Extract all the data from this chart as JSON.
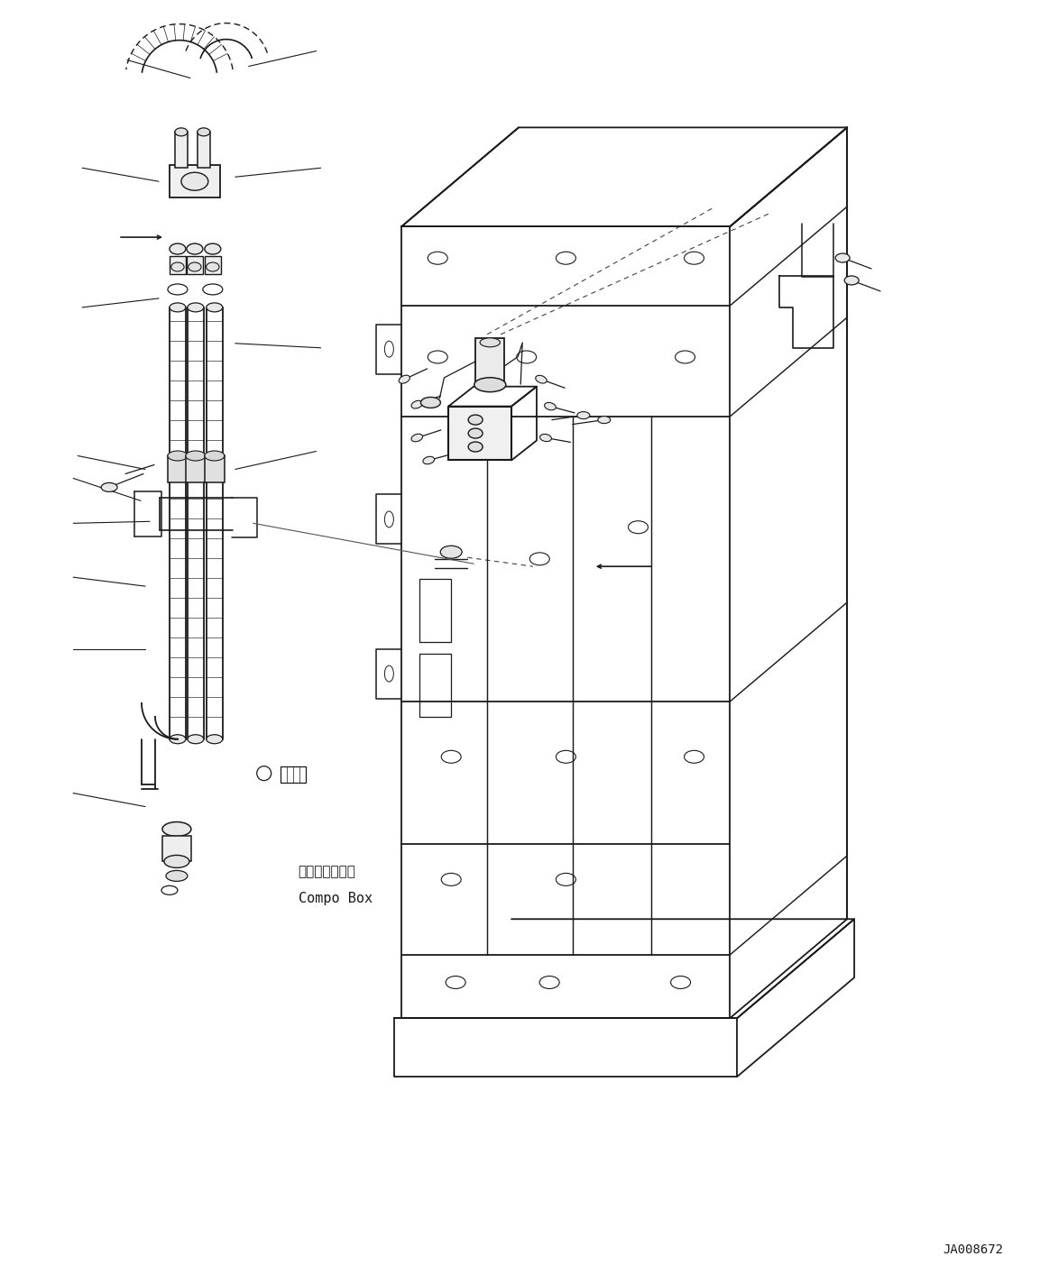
{
  "bg_color": "#ffffff",
  "line_color": "#1a1a1a",
  "label_text": "JA008672",
  "combo_box_label_jp": "コンボボックス",
  "combo_box_label_en": "Compo Box",
  "figsize": [
    11.63,
    14.24
  ],
  "dpi": 100
}
